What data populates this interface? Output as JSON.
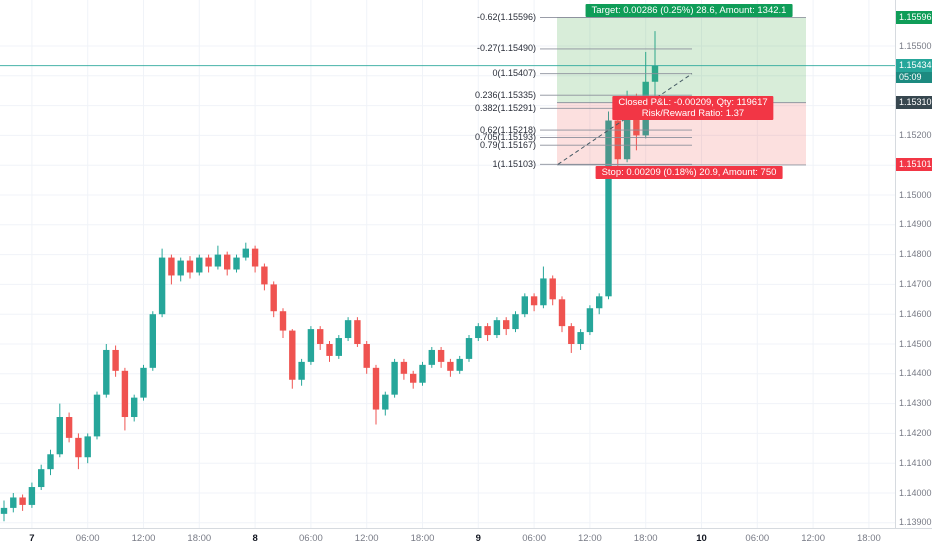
{
  "chart_data": {
    "type": "candlestick",
    "instrument_timeframe": "1h",
    "price_axis": {
      "ticks": [
        "1.15500",
        "1.15400",
        "1.15300",
        "1.15200",
        "1.15100",
        "1.15000",
        "1.14900",
        "1.14800",
        "1.14700",
        "1.14600",
        "1.14500",
        "1.14400",
        "1.14300",
        "1.14200",
        "1.14100",
        "1.14000",
        "1.13900"
      ],
      "ylim": [
        1.139,
        1.1565
      ]
    },
    "time_axis": [
      {
        "label": "7",
        "i": 3,
        "day": true
      },
      {
        "label": "06:00",
        "i": 9,
        "day": false
      },
      {
        "label": "12:00",
        "i": 15,
        "day": false
      },
      {
        "label": "18:00",
        "i": 21,
        "day": false
      },
      {
        "label": "8",
        "i": 27,
        "day": true
      },
      {
        "label": "06:00",
        "i": 33,
        "day": false
      },
      {
        "label": "12:00",
        "i": 39,
        "day": false
      },
      {
        "label": "18:00",
        "i": 45,
        "day": false
      },
      {
        "label": "9",
        "i": 51,
        "day": true
      },
      {
        "label": "06:00",
        "i": 57,
        "day": false
      },
      {
        "label": "12:00",
        "i": 63,
        "day": false
      },
      {
        "label": "18:00",
        "i": 69,
        "day": false
      },
      {
        "label": "10",
        "i": 75,
        "day": true
      },
      {
        "label": "06:00",
        "i": 81,
        "day": false
      },
      {
        "label": "12:00",
        "i": 87,
        "day": false
      },
      {
        "label": "18:00",
        "i": 93,
        "day": false
      }
    ],
    "candles": [
      [
        1.1393,
        1.13975,
        1.13905,
        1.1395
      ],
      [
        1.1395,
        1.14,
        1.13935,
        1.13985
      ],
      [
        1.13985,
        1.13995,
        1.1394,
        1.1396
      ],
      [
        1.1396,
        1.14035,
        1.1395,
        1.1402
      ],
      [
        1.1402,
        1.14095,
        1.1401,
        1.1408
      ],
      [
        1.1408,
        1.14145,
        1.1406,
        1.1413
      ],
      [
        1.1413,
        1.143,
        1.1412,
        1.14255
      ],
      [
        1.14255,
        1.1427,
        1.1417,
        1.14185
      ],
      [
        1.14185,
        1.142,
        1.1408,
        1.1412
      ],
      [
        1.1412,
        1.142,
        1.141,
        1.1419
      ],
      [
        1.1419,
        1.1434,
        1.1418,
        1.1433
      ],
      [
        1.1433,
        1.145,
        1.1432,
        1.1448
      ],
      [
        1.1448,
        1.14495,
        1.1439,
        1.1441
      ],
      [
        1.1441,
        1.1442,
        1.1421,
        1.14255
      ],
      [
        1.14255,
        1.1433,
        1.1424,
        1.1432
      ],
      [
        1.1432,
        1.1443,
        1.1431,
        1.1442
      ],
      [
        1.1442,
        1.1461,
        1.1441,
        1.146
      ],
      [
        1.146,
        1.1482,
        1.1459,
        1.1479
      ],
      [
        1.1479,
        1.148,
        1.147,
        1.1473
      ],
      [
        1.1473,
        1.1479,
        1.1471,
        1.1478
      ],
      [
        1.1478,
        1.14795,
        1.1472,
        1.1474
      ],
      [
        1.1474,
        1.148,
        1.1473,
        1.1479
      ],
      [
        1.1479,
        1.148,
        1.1474,
        1.1476
      ],
      [
        1.1476,
        1.1483,
        1.1475,
        1.148
      ],
      [
        1.148,
        1.1481,
        1.1473,
        1.1475
      ],
      [
        1.1475,
        1.148,
        1.1474,
        1.1479
      ],
      [
        1.1479,
        1.1484,
        1.1478,
        1.1482
      ],
      [
        1.1482,
        1.1483,
        1.1474,
        1.1476
      ],
      [
        1.1476,
        1.1477,
        1.1468,
        1.147
      ],
      [
        1.147,
        1.1471,
        1.1459,
        1.1461
      ],
      [
        1.1461,
        1.1462,
        1.1452,
        1.14545
      ],
      [
        1.14545,
        1.1455,
        1.1435,
        1.1438
      ],
      [
        1.1438,
        1.1445,
        1.1436,
        1.1444
      ],
      [
        1.1444,
        1.1456,
        1.1443,
        1.1455
      ],
      [
        1.1455,
        1.1456,
        1.1448,
        1.145
      ],
      [
        1.145,
        1.1451,
        1.1444,
        1.1446
      ],
      [
        1.1446,
        1.1453,
        1.1445,
        1.1452
      ],
      [
        1.1452,
        1.1459,
        1.1451,
        1.1458
      ],
      [
        1.1458,
        1.1459,
        1.1449,
        1.145
      ],
      [
        1.145,
        1.1451,
        1.144,
        1.1442
      ],
      [
        1.1442,
        1.1443,
        1.1423,
        1.1428
      ],
      [
        1.1428,
        1.1434,
        1.1426,
        1.1433
      ],
      [
        1.1433,
        1.1445,
        1.1432,
        1.1444
      ],
      [
        1.1444,
        1.1445,
        1.1438,
        1.144
      ],
      [
        1.144,
        1.1441,
        1.1435,
        1.1437
      ],
      [
        1.1437,
        1.1444,
        1.1436,
        1.1443
      ],
      [
        1.1443,
        1.1449,
        1.1442,
        1.1448
      ],
      [
        1.1448,
        1.1449,
        1.1442,
        1.1444
      ],
      [
        1.1444,
        1.1445,
        1.1439,
        1.1441
      ],
      [
        1.1441,
        1.1446,
        1.144,
        1.1445
      ],
      [
        1.1445,
        1.1453,
        1.1444,
        1.1452
      ],
      [
        1.1452,
        1.1457,
        1.1451,
        1.1456
      ],
      [
        1.1456,
        1.1457,
        1.1451,
        1.1453
      ],
      [
        1.1453,
        1.1459,
        1.1452,
        1.1458
      ],
      [
        1.1458,
        1.1459,
        1.1453,
        1.1455
      ],
      [
        1.1455,
        1.1461,
        1.1454,
        1.146
      ],
      [
        1.146,
        1.1467,
        1.1459,
        1.1466
      ],
      [
        1.1466,
        1.1467,
        1.1461,
        1.1463
      ],
      [
        1.1463,
        1.1476,
        1.1462,
        1.1472
      ],
      [
        1.1472,
        1.1473,
        1.1463,
        1.1465
      ],
      [
        1.1465,
        1.1466,
        1.1454,
        1.1456
      ],
      [
        1.1456,
        1.1457,
        1.1447,
        1.145
      ],
      [
        1.145,
        1.1455,
        1.1448,
        1.1454
      ],
      [
        1.1454,
        1.1463,
        1.1453,
        1.1462
      ],
      [
        1.1462,
        1.1467,
        1.146,
        1.1466
      ],
      [
        1.1466,
        1.1528,
        1.1465,
        1.1525
      ],
      [
        1.1525,
        1.1526,
        1.1506,
        1.1512
      ],
      [
        1.1512,
        1.1535,
        1.1511,
        1.1533
      ],
      [
        1.1533,
        1.1534,
        1.1515,
        1.152
      ],
      [
        1.152,
        1.1548,
        1.1519,
        1.1538
      ],
      [
        1.1538,
        1.1555,
        1.1529,
        1.15434
      ]
    ]
  },
  "fib": {
    "levels": [
      {
        "level": "-0.62",
        "price": 1.15596,
        "label": "-0.62(1.15596)"
      },
      {
        "level": "-0.27",
        "price": 1.1549,
        "label": "-0.27(1.15490)"
      },
      {
        "level": "0",
        "price": 1.15407,
        "label": "0(1.15407)"
      },
      {
        "level": "0.236",
        "price": 1.15335,
        "label": "0.236(1.15335)"
      },
      {
        "level": "0.382",
        "price": 1.15291,
        "label": "0.382(1.15291)"
      },
      {
        "level": "0.62",
        "price": 1.15218,
        "label": "0.62(1.15218)"
      },
      {
        "level": "0.705",
        "price": 1.15193,
        "label": "0.705(1.15193)"
      },
      {
        "level": "0.79",
        "price": 1.15167,
        "label": "0.79(1.15167)"
      },
      {
        "level": "1",
        "price": 1.15103,
        "label": "1(1.15103)"
      }
    ]
  },
  "position_tool": {
    "entry_price": 1.1531,
    "target_price": 1.15596,
    "stop_price": 1.15101,
    "target_label": "Target: 0.00286 (0.25%) 28.6, Amount: 1342.1",
    "pnl_label_line1": "Closed P&L: -0.00209, Qty: 119617",
    "pnl_label_line2": "Risk/Reward Ratio: 1.37",
    "stop_label": "Stop: 0.00209 (0.18%) 20.9, Amount: 750"
  },
  "last_price": {
    "value": 1.15434,
    "countdown": "05:09"
  },
  "price_badges": [
    {
      "text": "1.15596",
      "price": 1.15596,
      "color_key": "profit",
      "name": "target-price-badge"
    },
    {
      "text": "1.15434",
      "price": 1.15434,
      "color_key": "last",
      "name": "last-price-badge",
      "countdown": "05:09"
    },
    {
      "text": "1.15310",
      "price": 1.1531,
      "color_key": "entry",
      "name": "entry-price-badge"
    },
    {
      "text": "1.15101",
      "price": 1.15101,
      "color_key": "loss",
      "name": "stop-price-badge"
    }
  ],
  "colors": {
    "up": "#26a69a",
    "down": "#ef5350",
    "profit": "#0f9d58",
    "loss": "#f23645",
    "entry": "#37474f",
    "last": "#26a69a",
    "countdown": "#1d8a80",
    "profit_zone": "rgba(76,175,80,0.22)",
    "loss_zone": "rgba(239,83,80,0.18)",
    "fib_line": "#8b8f9b",
    "trend_dash": "#455a64",
    "grid": "#f0f3f8",
    "axis_text": "#787b86",
    "day_text": "#131722",
    "fib_text": "#2a2e39"
  }
}
